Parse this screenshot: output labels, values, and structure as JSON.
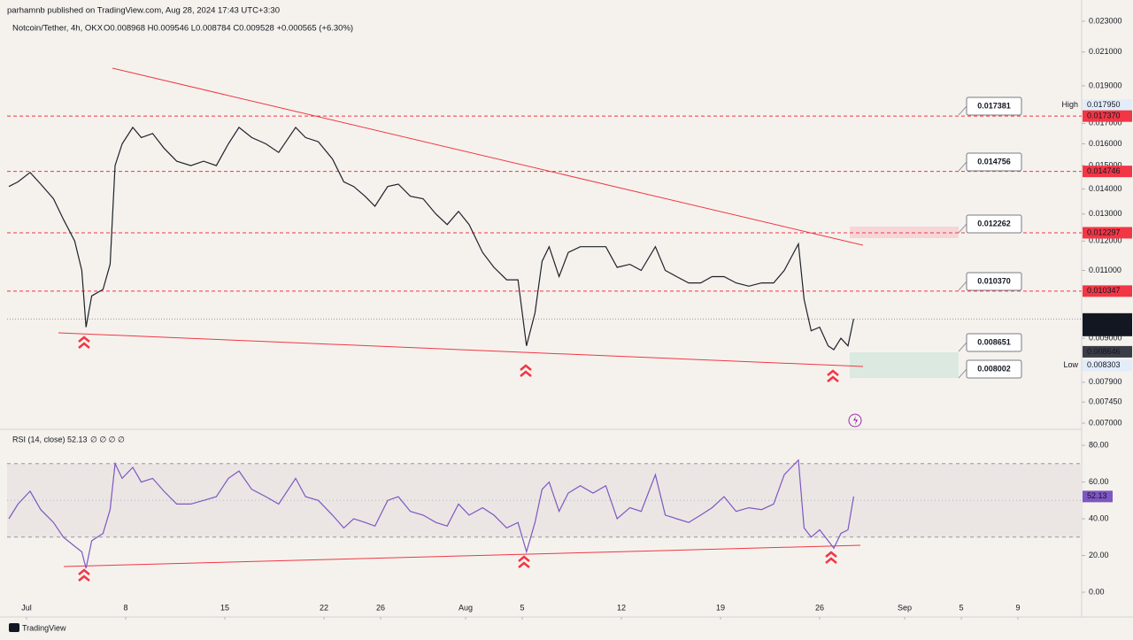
{
  "header": {
    "publisher": "parhamnb published on TradingView.com, Aug 28, 2024 17:43 UTC+3:30",
    "symbol": "Notcoin/Tether, 4h, OKX",
    "ohlc": "O0.008968 H0.009546 L0.008784 C0.009528 +0.000565 (+6.30%)"
  },
  "chart_data": [
    {
      "type": "line",
      "log_scale": true,
      "x": [
        -1.25,
        -0.6,
        0.25,
        1,
        1.9,
        2.6,
        3.4,
        3.9,
        4.2,
        4.6,
        5.4,
        5.9,
        6.25,
        6.75,
        7.5,
        8.1,
        8.9,
        9.7,
        10.6,
        11.6,
        12.5,
        13.4,
        14.25,
        15,
        15.9,
        16.9,
        17.8,
        19,
        19.7,
        20.6,
        21.6,
        22.4,
        23.1,
        23.9,
        24.6,
        25.5,
        26.25,
        27.1,
        28,
        28.9,
        29.7,
        30.5,
        31.25,
        32.2,
        33,
        33.9,
        34.7,
        35.3,
        35.9,
        36.4,
        36.9,
        37.6,
        38.25,
        39.1,
        40,
        40.9,
        41.7,
        42.6,
        43.4,
        44.4,
        45.1,
        45.9,
        46.75,
        47.6,
        48.4,
        49.25,
        50.1,
        51,
        51.9,
        52.75,
        53.5,
        54.5,
        54.9,
        55.4,
        56,
        56.6,
        57,
        57.5,
        58,
        58.4
      ],
      "series": [
        {
          "color": "#1e222d",
          "values": [
            0.0141,
            0.0143,
            0.0147,
            0.0142,
            0.0136,
            0.0128,
            0.012,
            0.011,
            0.0093,
            0.0102,
            0.0104,
            0.0112,
            0.015,
            0.016,
            0.0168,
            0.0163,
            0.0165,
            0.0158,
            0.0152,
            0.015,
            0.0152,
            0.015,
            0.016,
            0.0168,
            0.0163,
            0.016,
            0.0156,
            0.0168,
            0.0163,
            0.0161,
            0.0153,
            0.0143,
            0.0141,
            0.0137,
            0.0133,
            0.0141,
            0.0142,
            0.0137,
            0.0136,
            0.013,
            0.0126,
            0.0131,
            0.0126,
            0.0116,
            0.0111,
            0.0107,
            0.0107,
            0.0088,
            0.0097,
            0.0113,
            0.0118,
            0.0108,
            0.0116,
            0.0118,
            0.0118,
            0.0118,
            0.0111,
            0.0112,
            0.011,
            0.0118,
            0.011,
            0.0108,
            0.0106,
            0.0106,
            0.0108,
            0.0108,
            0.0106,
            0.0105,
            0.0106,
            0.0106,
            0.011,
            0.0119,
            0.0101,
            0.0092,
            0.0093,
            0.0088,
            0.0087,
            0.009,
            0.0088,
            0.009528
          ]
        }
      ],
      "xlim": [
        -1.375,
        74.5
      ],
      "xticks": [
        {
          "value": 0,
          "label": "Jul"
        },
        {
          "value": 7,
          "label": "8"
        },
        {
          "value": 14,
          "label": "15"
        },
        {
          "value": 21,
          "label": "22"
        },
        {
          "value": 25,
          "label": "26"
        },
        {
          "value": 31,
          "label": "Aug"
        },
        {
          "value": 35,
          "label": "5"
        },
        {
          "value": 42,
          "label": "12"
        },
        {
          "value": 49,
          "label": "19"
        },
        {
          "value": 56,
          "label": "26"
        },
        {
          "value": 62,
          "label": "Sep"
        },
        {
          "value": 66,
          "label": "5"
        },
        {
          "value": 70,
          "label": "9"
        }
      ],
      "ylim": [
        0.007,
        0.023
      ],
      "yticks": [
        {
          "value": 0.023,
          "label": "0.023000"
        },
        {
          "value": 0.021,
          "label": "0.021000"
        },
        {
          "value": 0.019,
          "label": "0.019000"
        },
        {
          "value": 0.017,
          "label": "0.017000"
        },
        {
          "value": 0.016,
          "label": "0.016000"
        },
        {
          "value": 0.015,
          "label": "0.015000"
        },
        {
          "value": 0.014,
          "label": "0.014000"
        },
        {
          "value": 0.013,
          "label": "0.013000"
        },
        {
          "value": 0.012,
          "label": "0.012000"
        },
        {
          "value": 0.011,
          "label": "0.011000"
        },
        {
          "value": 0.009,
          "label": "0.009000"
        },
        {
          "value": 0.0079,
          "label": "0.007900"
        },
        {
          "value": 0.00745,
          "label": "0.007450"
        },
        {
          "value": 0.007,
          "label": "0.007000"
        }
      ],
      "price_labels": [
        {
          "value": 0.01795,
          "label": "0.017950",
          "tag": "High",
          "color": "#e3edf9"
        },
        {
          "value": 0.01737,
          "label": "0.017370",
          "color": "#f23645",
          "dashed": true
        },
        {
          "value": 0.014746,
          "label": "0.014746",
          "color": "#f23645",
          "dashed": true
        },
        {
          "value": 0.012297,
          "label": "0.012297",
          "color": "#f23645",
          "dashed": true
        },
        {
          "value": 0.010347,
          "label": "0.010347",
          "color": "#f23645",
          "dashed": true
        },
        {
          "value": 0.009528,
          "label": "0.009528",
          "color": "#131722",
          "timer": "01:46:26"
        },
        {
          "value": 0.008646,
          "label": "0.008646",
          "color": "#3a3d45"
        },
        {
          "value": 0.008303,
          "label": "0.008303",
          "tag": "Low",
          "color": "#e3edf9"
        }
      ],
      "levels": [
        "0.017381",
        "0.014756",
        "0.012262",
        "0.010370",
        "0.008651",
        "0.008002"
      ]
    },
    {
      "type": "line",
      "title": "RSI (14, close)",
      "inputs": "∅ ∅ ∅ ∅",
      "x": [
        -1.25,
        -0.6,
        0.25,
        1,
        1.9,
        2.6,
        3.4,
        3.9,
        4.2,
        4.6,
        5.4,
        5.9,
        6.25,
        6.75,
        7.5,
        8.1,
        8.9,
        9.7,
        10.6,
        11.6,
        12.5,
        13.4,
        14.25,
        15,
        15.9,
        16.9,
        17.8,
        19,
        19.7,
        20.6,
        21.6,
        22.4,
        23.1,
        23.9,
        24.6,
        25.5,
        26.25,
        27.1,
        28,
        28.9,
        29.7,
        30.5,
        31.25,
        32.2,
        33,
        33.9,
        34.7,
        35.3,
        35.9,
        36.4,
        36.9,
        37.6,
        38.25,
        39.1,
        40,
        40.9,
        41.7,
        42.6,
        43.4,
        44.4,
        45.1,
        45.9,
        46.75,
        47.6,
        48.4,
        49.25,
        50.1,
        51,
        51.9,
        52.75,
        53.5,
        54.5,
        54.9,
        55.4,
        56,
        56.6,
        57,
        57.5,
        58,
        58.4
      ],
      "series": [
        {
          "color": "#7e57c2",
          "values": [
            40,
            48,
            55,
            45,
            38,
            30,
            25,
            22,
            13,
            28,
            32,
            45,
            70,
            62,
            68,
            60,
            62,
            55,
            48,
            48,
            50,
            52,
            62,
            66,
            56,
            52,
            48,
            62,
            52,
            50,
            42,
            35,
            40,
            38,
            36,
            50,
            52,
            44,
            42,
            38,
            36,
            48,
            42,
            46,
            42,
            35,
            38,
            22,
            38,
            56,
            60,
            44,
            54,
            58,
            54,
            58,
            40,
            46,
            44,
            64,
            42,
            40,
            38,
            42,
            46,
            52,
            44,
            46,
            45,
            48,
            64,
            72,
            35,
            30,
            34,
            28,
            24,
            32,
            34,
            52.13
          ]
        }
      ],
      "xlim": [
        -1.375,
        74.5
      ],
      "ylim": [
        -13.5,
        86.3
      ],
      "yticks": [
        {
          "value": 0,
          "label": "0.00"
        },
        {
          "value": 20,
          "label": "20.00"
        },
        {
          "value": 40,
          "label": "40.00"
        },
        {
          "value": 60,
          "label": "60.00"
        },
        {
          "value": 80,
          "label": "80.00"
        }
      ],
      "bands": [
        30,
        70
      ],
      "midline": 50
    }
  ],
  "footer": "TradingView"
}
